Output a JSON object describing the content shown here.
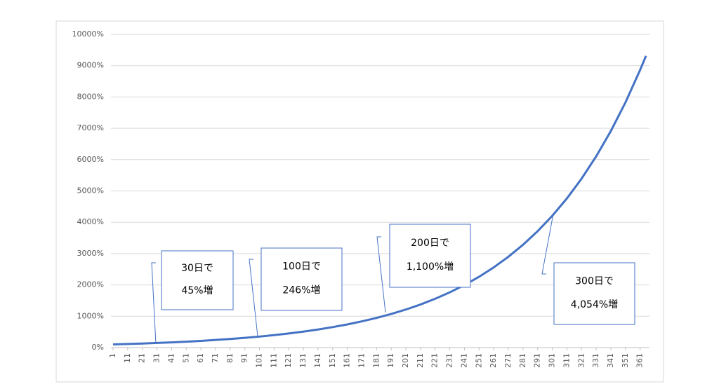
{
  "chart_data": {
    "type": "line",
    "x": [
      1,
      11,
      21,
      31,
      41,
      51,
      61,
      71,
      81,
      91,
      101,
      111,
      121,
      131,
      141,
      151,
      161,
      171,
      181,
      191,
      201,
      211,
      221,
      231,
      241,
      251,
      261,
      271,
      281,
      291,
      301,
      311,
      321,
      331,
      341,
      351,
      361,
      365
    ],
    "series": [
      {
        "color": "#4472c4",
        "values": [
          101,
          115,
          130,
          147,
          166,
          188,
          213,
          242,
          274,
          310,
          351,
          397,
          450,
          509,
          576,
          653,
          739,
          837,
          947,
          1073,
          1214,
          1375,
          1557,
          1763,
          1996,
          2260,
          2559,
          2898,
          3281,
          3715,
          4206,
          4762,
          5392,
          6105,
          6913,
          7827,
          8863,
          9314
        ]
      }
    ],
    "xlim": [
      1,
      365
    ],
    "xticks": [
      1,
      11,
      21,
      31,
      41,
      51,
      61,
      71,
      81,
      91,
      101,
      111,
      121,
      131,
      141,
      151,
      161,
      171,
      181,
      191,
      201,
      211,
      221,
      231,
      241,
      251,
      261,
      271,
      281,
      291,
      301,
      311,
      321,
      331,
      341,
      351,
      361
    ],
    "ylim": [
      0,
      10000
    ],
    "yticks": [
      {
        "value": 0,
        "label": "0%"
      },
      {
        "value": 1000,
        "label": "1000%"
      },
      {
        "value": 2000,
        "label": "2000%"
      },
      {
        "value": 3000,
        "label": "3000%"
      },
      {
        "value": 4000,
        "label": "4000%"
      },
      {
        "value": 5000,
        "label": "5000%"
      },
      {
        "value": 6000,
        "label": "6000%"
      },
      {
        "value": 7000,
        "label": "7000%"
      },
      {
        "value": 8000,
        "label": "8000%"
      },
      {
        "value": 9000,
        "label": "9000%"
      },
      {
        "value": 10000,
        "label": "10000%"
      }
    ],
    "grid": true,
    "annotations": [
      [
        "30日で",
        "45%増"
      ],
      [
        "100日で",
        "246%増"
      ],
      [
        "200日で",
        "1,100%増"
      ],
      [
        "300日で",
        "4,054%増"
      ]
    ]
  }
}
